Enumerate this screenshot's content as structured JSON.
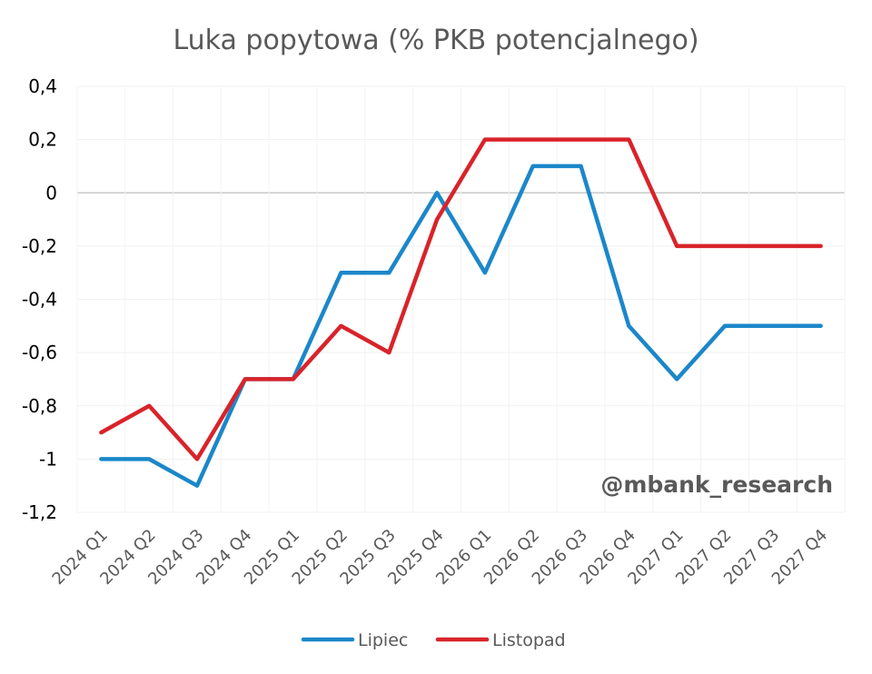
{
  "chart_data": {
    "type": "line",
    "title": "Luka popytowa (% PKB potencjalnego)",
    "xlabel": "",
    "ylabel": "",
    "categories": [
      "2024 Q1",
      "2024 Q2",
      "2024 Q3",
      "2024 Q4",
      "2025 Q1",
      "2025 Q2",
      "2025 Q3",
      "2025 Q4",
      "2026 Q1",
      "2026 Q2",
      "2026 Q3",
      "2026 Q4",
      "2027 Q1",
      "2027 Q2",
      "2027 Q3",
      "2027 Q4"
    ],
    "ylim": [
      -1.2,
      0.4
    ],
    "yticks": [
      0.4,
      0.2,
      0,
      -0.2,
      -0.4,
      -0.6,
      -0.8,
      -1,
      -1.2
    ],
    "ytick_labels": [
      "0,4",
      "0,2",
      "0",
      "-0,2",
      "-0,4",
      "-0,6",
      "-0,8",
      "-1",
      "-1,2"
    ],
    "grid": true,
    "legend_position": "bottom",
    "series": [
      {
        "name": "Lipiec",
        "color": "#1b87c9",
        "values": [
          -1.0,
          -1.0,
          -1.1,
          -0.7,
          -0.7,
          -0.3,
          -0.3,
          0.0,
          -0.3,
          0.1,
          0.1,
          -0.5,
          -0.7,
          -0.5,
          -0.5,
          -0.5
        ]
      },
      {
        "name": "Listopad",
        "color": "#d9232a",
        "values": [
          -0.9,
          -0.8,
          -1.0,
          -0.7,
          -0.7,
          -0.5,
          -0.6,
          -0.1,
          0.2,
          0.2,
          0.2,
          0.2,
          -0.2,
          -0.2,
          -0.2,
          -0.2
        ]
      }
    ],
    "watermark": "@mbank_research"
  }
}
